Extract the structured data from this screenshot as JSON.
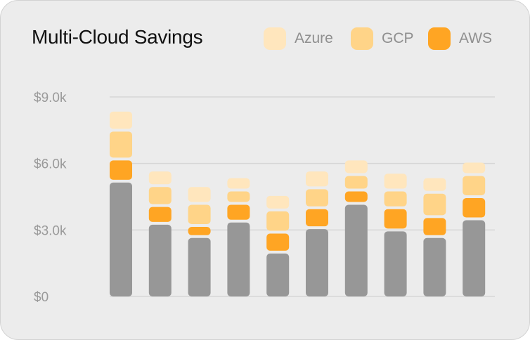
{
  "chart_data": {
    "type": "bar",
    "stacked": true,
    "title": "Multi-Cloud Savings",
    "xlabel": "",
    "ylabel": "",
    "ylim": [
      0,
      9000
    ],
    "grid": true,
    "legend_position": "top-right",
    "y_ticks": [
      "$0",
      "$3.0k",
      "$6.0k",
      "$9.0k"
    ],
    "y_tick_values": [
      0,
      3000,
      6000,
      9000
    ],
    "categories": [
      "",
      "",
      "",
      "",
      "",
      "",
      "",
      "",
      "",
      ""
    ],
    "series": [
      {
        "name": "",
        "color": "#979797",
        "values": [
          5200,
          3300,
          2700,
          3400,
          2000,
          3100,
          4200,
          3000,
          2700,
          3500
        ]
      },
      {
        "name": "AWS",
        "color": "#ffa523",
        "values": [
          1000,
          800,
          500,
          800,
          900,
          900,
          600,
          1000,
          900,
          1000
        ]
      },
      {
        "name": "GCP",
        "color": "#ffd488",
        "values": [
          1300,
          900,
          1000,
          600,
          1000,
          900,
          700,
          800,
          1100,
          1000
        ]
      },
      {
        "name": "Azure",
        "color": "#ffe6bd",
        "values": [
          900,
          700,
          800,
          600,
          700,
          800,
          700,
          800,
          700,
          600
        ]
      }
    ]
  },
  "legend": [
    {
      "label": "Azure",
      "color": "#ffe6bd"
    },
    {
      "label": "GCP",
      "color": "#ffd488"
    },
    {
      "label": "AWS",
      "color": "#ffa523"
    }
  ]
}
